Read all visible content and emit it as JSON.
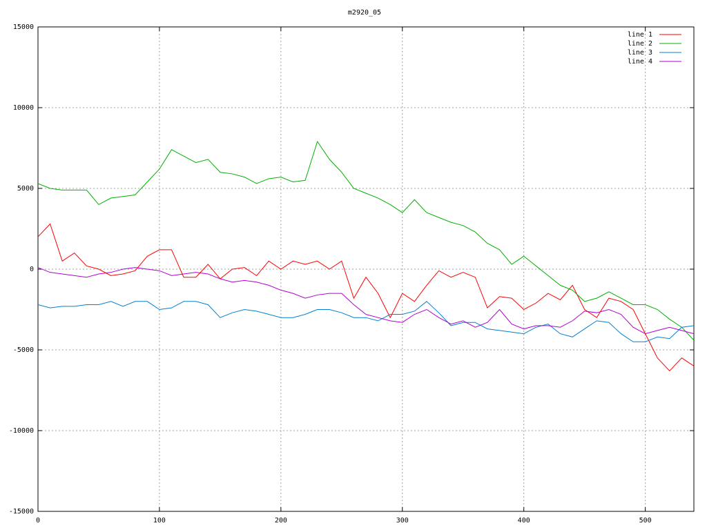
{
  "chart_data": {
    "type": "line",
    "title": "m2920_05",
    "x": [
      0,
      10,
      20,
      30,
      40,
      50,
      60,
      70,
      80,
      90,
      100,
      110,
      120,
      130,
      140,
      150,
      160,
      170,
      180,
      190,
      200,
      210,
      220,
      230,
      240,
      250,
      260,
      270,
      280,
      290,
      300,
      310,
      320,
      330,
      340,
      350,
      360,
      370,
      380,
      390,
      400,
      410,
      420,
      430,
      440,
      450,
      460,
      470,
      480,
      490,
      500,
      510,
      520,
      530,
      540
    ],
    "series": [
      {
        "name": "line 1",
        "color": "#ff0000",
        "values": [
          2000,
          2800,
          500,
          1000,
          200,
          0,
          -400,
          -300,
          -100,
          800,
          1200,
          1200,
          -500,
          -500,
          300,
          -600,
          0,
          100,
          -400,
          500,
          0,
          500,
          300,
          500,
          0,
          500,
          -1800,
          -500,
          -1500,
          -3000,
          -1500,
          -2000,
          -1000,
          -100,
          -500,
          -200,
          -500,
          -2400,
          -1700,
          -1800,
          -2500,
          -2100,
          -1500,
          -1900,
          -1000,
          -2500,
          -3000,
          -1800,
          -2000,
          -2500,
          -4000,
          -5500,
          -6300,
          -5500,
          -6000
        ]
      },
      {
        "name": "line 2",
        "color": "#00b000",
        "values": [
          5300,
          5000,
          4900,
          4900,
          4900,
          4000,
          4400,
          4500,
          4600,
          5400,
          6200,
          7400,
          7000,
          6600,
          6800,
          6000,
          5900,
          5700,
          5300,
          5600,
          5700,
          5400,
          5500,
          7900,
          6800,
          6000,
          5000,
          4700,
          4400,
          4000,
          3500,
          4300,
          3500,
          3200,
          2900,
          2700,
          2300,
          1600,
          1200,
          300,
          800,
          200,
          -400,
          -1000,
          -1300,
          -2000,
          -1800,
          -1400,
          -1800,
          -2200,
          -2200,
          -2500,
          -3100,
          -3600,
          -4400
        ]
      },
      {
        "name": "line 3",
        "color": "#0080d0",
        "values": [
          -2200,
          -2400,
          -2300,
          -2300,
          -2200,
          -2200,
          -2000,
          -2300,
          -2000,
          -2000,
          -2500,
          -2400,
          -2000,
          -2000,
          -2200,
          -3000,
          -2700,
          -2500,
          -2600,
          -2800,
          -3000,
          -3000,
          -2800,
          -2500,
          -2500,
          -2700,
          -3000,
          -3000,
          -3200,
          -2800,
          -2800,
          -2600,
          -2000,
          -2700,
          -3500,
          -3300,
          -3300,
          -3700,
          -3800,
          -3900,
          -4000,
          -3600,
          -3400,
          -4000,
          -4200,
          -3700,
          -3200,
          -3300,
          -4000,
          -4500,
          -4500,
          -4200,
          -4300,
          -3600,
          -3500
        ]
      },
      {
        "name": "line 4",
        "color": "#b000d0",
        "values": [
          100,
          -200,
          -300,
          -400,
          -500,
          -300,
          -200,
          0,
          100,
          0,
          -100,
          -400,
          -300,
          -200,
          -300,
          -600,
          -800,
          -700,
          -800,
          -1000,
          -1300,
          -1500,
          -1800,
          -1600,
          -1500,
          -1500,
          -2200,
          -2800,
          -3000,
          -3200,
          -3300,
          -2800,
          -2500,
          -3000,
          -3400,
          -3200,
          -3600,
          -3300,
          -2500,
          -3400,
          -3700,
          -3500,
          -3500,
          -3600,
          -3200,
          -2600,
          -2700,
          -2500,
          -2800,
          -3600,
          -4000,
          -3800,
          -3600,
          -3800,
          -4000
        ]
      }
    ],
    "xlim": [
      0,
      540
    ],
    "xticks": [
      0,
      100,
      200,
      300,
      400,
      500
    ],
    "ylim": [
      -15000,
      15000
    ],
    "yticks": [
      -15000,
      -10000,
      -5000,
      0,
      5000,
      10000,
      15000
    ],
    "grid": true,
    "legend": "top-right"
  }
}
